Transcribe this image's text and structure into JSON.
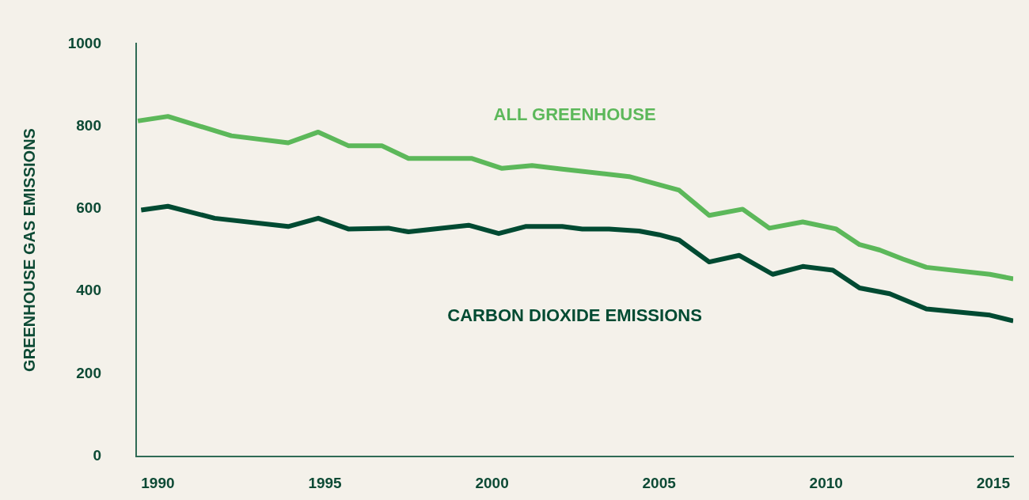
{
  "chart_data": {
    "type": "line",
    "ylabel": "GREENHOUSE GAS EMISSIONS",
    "xlim": [
      1989.35,
      2015.6
    ],
    "xticks": [
      1990,
      1995,
      2000,
      2005,
      2010,
      2015
    ],
    "ylim": [
      0,
      1000
    ],
    "yticks": [
      0,
      200,
      400,
      600,
      800,
      1000
    ],
    "grid": false,
    "legend": false,
    "marker": "none",
    "line_style": "solid",
    "series": [
      {
        "name": "ALL GREENHOUSE",
        "color": "#5cb85a",
        "x": [
          1989.4,
          1990.3,
          1992.2,
          1993.9,
          1994.8,
          1995.7,
          1996.7,
          1997.5,
          1999.4,
          2000.3,
          2001.2,
          2002.1,
          2004.1,
          2005.6,
          2006.5,
          2007.5,
          2008.3,
          2009.3,
          2010.3,
          2011.0,
          2011.6,
          2012.3,
          2013.0,
          2014.9,
          2015.6
        ],
        "values": [
          813,
          824,
          777,
          760,
          786,
          753,
          753,
          722,
          722,
          698,
          705,
          696,
          678,
          645,
          584,
          599,
          553,
          568,
          551,
          513,
          500,
          478,
          458,
          441,
          430
        ]
      },
      {
        "name": "CARBON DIOXIDE EMISSIONS",
        "color": "#004a32",
        "x": [
          1989.5,
          1990.3,
          1991.7,
          1993.9,
          1994.8,
          1995.7,
          1996.9,
          1997.5,
          1999.3,
          2000.2,
          2001.0,
          2002.1,
          2002.7,
          2003.5,
          2004.4,
          2005.0,
          2005.6,
          2006.5,
          2007.4,
          2008.4,
          2009.3,
          2010.2,
          2011.0,
          2011.9,
          2013.0,
          2014.9,
          2015.6
        ],
        "values": [
          597,
          606,
          577,
          557,
          577,
          551,
          553,
          544,
          560,
          540,
          557,
          557,
          551,
          551,
          546,
          537,
          524,
          471,
          487,
          441,
          460,
          451,
          408,
          394,
          357,
          342,
          328
        ]
      }
    ]
  }
}
